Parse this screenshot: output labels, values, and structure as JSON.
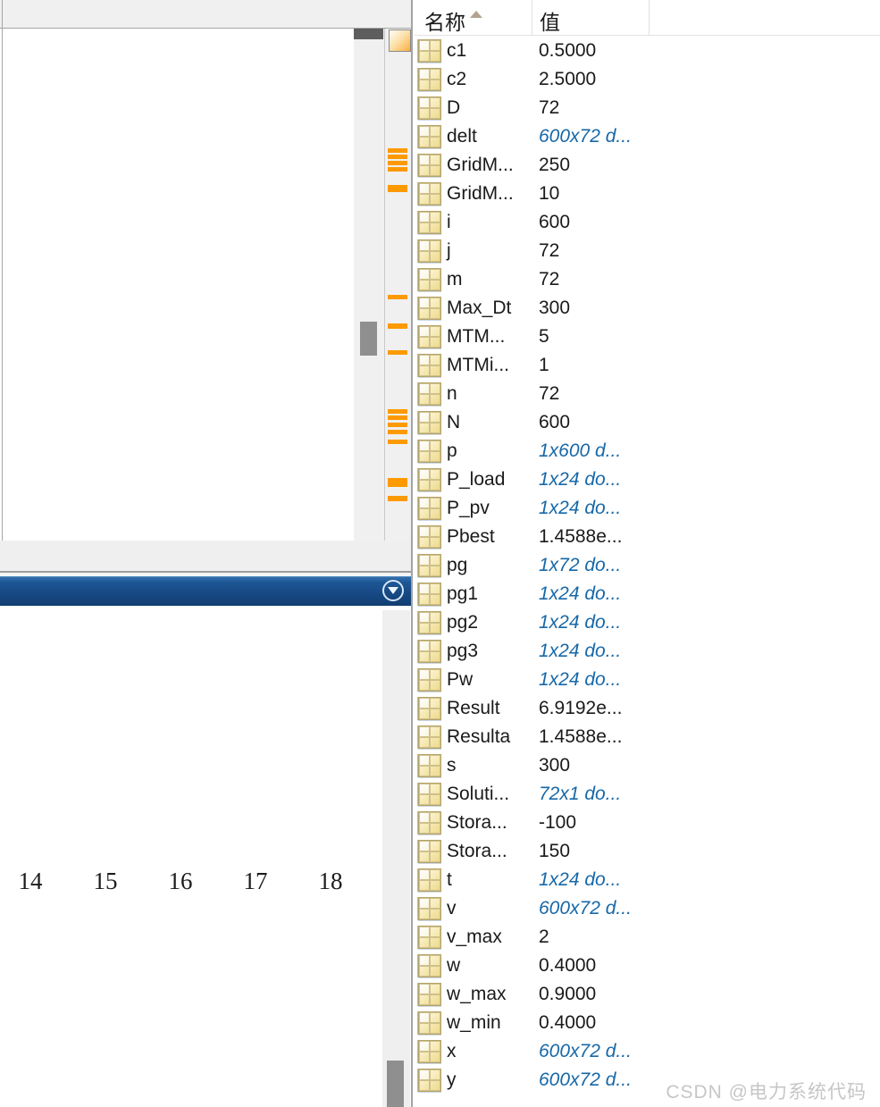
{
  "workspace": {
    "header": {
      "name_label": "名称",
      "value_label": "值"
    },
    "rows": [
      {
        "name": "c1",
        "value": "0.5000",
        "dim": false
      },
      {
        "name": "c2",
        "value": "2.5000",
        "dim": false
      },
      {
        "name": "D",
        "value": "72",
        "dim": false
      },
      {
        "name": "delt",
        "value": "600x72 d...",
        "dim": true
      },
      {
        "name": "GridM...",
        "value": "250",
        "dim": false
      },
      {
        "name": "GridM...",
        "value": "10",
        "dim": false
      },
      {
        "name": "i",
        "value": "600",
        "dim": false
      },
      {
        "name": "j",
        "value": "72",
        "dim": false
      },
      {
        "name": "m",
        "value": "72",
        "dim": false
      },
      {
        "name": "Max_Dt",
        "value": "300",
        "dim": false
      },
      {
        "name": "MTM...",
        "value": "5",
        "dim": false
      },
      {
        "name": "MTMi...",
        "value": "1",
        "dim": false
      },
      {
        "name": "n",
        "value": "72",
        "dim": false
      },
      {
        "name": "N",
        "value": "600",
        "dim": false
      },
      {
        "name": "p",
        "value": "1x600 d...",
        "dim": true
      },
      {
        "name": "P_load",
        "value": "1x24 do...",
        "dim": true
      },
      {
        "name": "P_pv",
        "value": "1x24 do...",
        "dim": true
      },
      {
        "name": "Pbest",
        "value": "1.4588e...",
        "dim": false
      },
      {
        "name": "pg",
        "value": "1x72 do...",
        "dim": true
      },
      {
        "name": "pg1",
        "value": "1x24 do...",
        "dim": true
      },
      {
        "name": "pg2",
        "value": "1x24 do...",
        "dim": true
      },
      {
        "name": "pg3",
        "value": "1x24 do...",
        "dim": true
      },
      {
        "name": "Pw",
        "value": "1x24 do...",
        "dim": true
      },
      {
        "name": "Result",
        "value": "6.9192e...",
        "dim": false
      },
      {
        "name": "Resulta",
        "value": "1.4588e...",
        "dim": false
      },
      {
        "name": "s",
        "value": "300",
        "dim": false
      },
      {
        "name": "Soluti...",
        "value": "72x1 do...",
        "dim": true
      },
      {
        "name": "Stora...",
        "value": "-100",
        "dim": false
      },
      {
        "name": "Stora...",
        "value": "150",
        "dim": false
      },
      {
        "name": "t",
        "value": "1x24 do...",
        "dim": true
      },
      {
        "name": "v",
        "value": "600x72 d...",
        "dim": true
      },
      {
        "name": "v_max",
        "value": "2",
        "dim": false
      },
      {
        "name": "w",
        "value": "0.4000",
        "dim": false
      },
      {
        "name": "w_max",
        "value": "0.9000",
        "dim": false
      },
      {
        "name": "w_min",
        "value": "0.4000",
        "dim": false
      },
      {
        "name": "x",
        "value": "600x72 d...",
        "dim": true
      },
      {
        "name": "y",
        "value": "600x72 d...",
        "dim": true
      }
    ]
  },
  "figure": {
    "x_ticks": [
      "14",
      "15",
      "16",
      "17",
      "18"
    ]
  },
  "editor": {
    "markers": [
      {
        "y": 166,
        "h": 5
      },
      {
        "y": 173,
        "h": 5
      },
      {
        "y": 180,
        "h": 5
      },
      {
        "y": 187,
        "h": 5
      },
      {
        "y": 207,
        "h": 8
      },
      {
        "y": 330,
        "h": 5
      },
      {
        "y": 362,
        "h": 6
      },
      {
        "y": 392,
        "h": 5
      },
      {
        "y": 458,
        "h": 5
      },
      {
        "y": 465,
        "h": 5
      },
      {
        "y": 473,
        "h": 5
      },
      {
        "y": 481,
        "h": 5
      },
      {
        "y": 492,
        "h": 5
      },
      {
        "y": 535,
        "h": 10
      },
      {
        "y": 555,
        "h": 6
      }
    ]
  },
  "colors": {
    "marker_orange": "#fd9a00",
    "dim_blue": "#1768a8",
    "titlebar_blue": "#174a85",
    "panel_gray": "#f0f0f0"
  },
  "watermark": "CSDN @电力系统代码"
}
